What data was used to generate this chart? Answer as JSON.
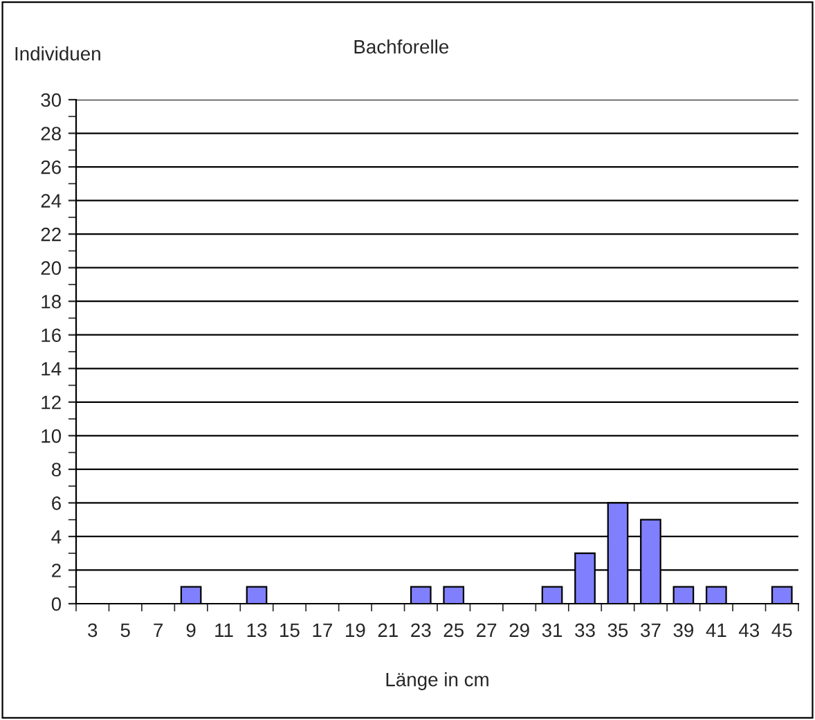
{
  "chart_data": {
    "type": "bar",
    "title": "Bachforelle",
    "ylabel": "Individuen",
    "xlabel": "Länge in cm",
    "categories": [
      "3",
      "5",
      "7",
      "9",
      "11",
      "13",
      "15",
      "17",
      "19",
      "21",
      "23",
      "25",
      "27",
      "29",
      "31",
      "33",
      "35",
      "37",
      "39",
      "41",
      "43",
      "45"
    ],
    "values": [
      0,
      0,
      0,
      1,
      0,
      1,
      0,
      0,
      0,
      0,
      1,
      1,
      0,
      0,
      1,
      3,
      6,
      5,
      1,
      1,
      0,
      1
    ],
    "color": "#8080ff",
    "ylim": [
      0,
      30
    ],
    "yticks": [
      0,
      2,
      4,
      6,
      8,
      10,
      12,
      14,
      16,
      18,
      20,
      22,
      24,
      26,
      28,
      30
    ],
    "grid": "y",
    "legend": false
  }
}
